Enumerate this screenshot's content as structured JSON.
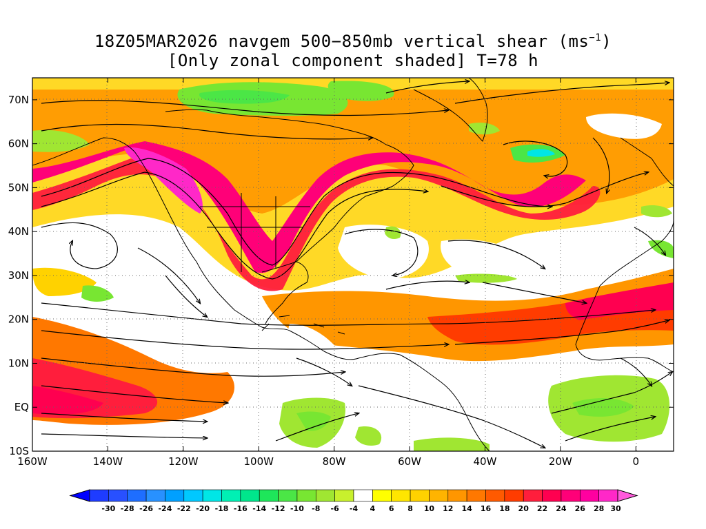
{
  "title": {
    "line1_prefix": "18Z05MAR2026 navgem 500−850mb vertical shear (ms",
    "line1_sup": "−1",
    "line1_suffix": ")",
    "line2": "[Only zonal component shaded] T=78 h"
  },
  "map": {
    "region": "North Atlantic / North America",
    "lon_ticks": [
      {
        "value": -160,
        "label": "160W"
      },
      {
        "value": -140,
        "label": "140W"
      },
      {
        "value": -120,
        "label": "120W"
      },
      {
        "value": -100,
        "label": "100W"
      },
      {
        "value": -80,
        "label": "80W"
      },
      {
        "value": -60,
        "label": "60W"
      },
      {
        "value": -40,
        "label": "40W"
      },
      {
        "value": -20,
        "label": "20W"
      },
      {
        "value": 0,
        "label": "0"
      }
    ],
    "lat_ticks": [
      {
        "value": 70,
        "label": "70N"
      },
      {
        "value": 60,
        "label": "60N"
      },
      {
        "value": 50,
        "label": "50N"
      },
      {
        "value": 40,
        "label": "40N"
      },
      {
        "value": 30,
        "label": "30N"
      },
      {
        "value": 20,
        "label": "20N"
      },
      {
        "value": 10,
        "label": "10N"
      },
      {
        "value": 0,
        "label": "EQ"
      },
      {
        "value": -10,
        "label": "10S"
      }
    ],
    "lon_range": [
      -160,
      10
    ],
    "lat_range": [
      -10,
      75
    ],
    "shading_features": [
      {
        "kind": "jet",
        "level": 26,
        "desc": "subtropical jet core NE Pacific"
      },
      {
        "kind": "jet",
        "level": 26,
        "desc": "jet core over Hudson Bay / N Atlantic"
      },
      {
        "kind": "jet",
        "level": 24,
        "desc": "easterly-shear band over N Africa / E Atlantic"
      },
      {
        "kind": "jet",
        "level": 22,
        "desc": "tropical Pacific shear band"
      }
    ]
  },
  "colorbar": {
    "labels": [
      "-30",
      "-28",
      "-26",
      "-24",
      "-22",
      "-20",
      "-18",
      "-16",
      "-14",
      "-12",
      "-10",
      "-8",
      "-6",
      "-4",
      "4",
      "6",
      "8",
      "10",
      "12",
      "14",
      "16",
      "18",
      "20",
      "22",
      "24",
      "26",
      "28",
      "30"
    ],
    "colors": [
      "#1e3cff",
      "#2850ff",
      "#1e6eff",
      "#2891ff",
      "#00a0ff",
      "#00c8ff",
      "#00e6e6",
      "#00f0b4",
      "#00e68c",
      "#1ee65a",
      "#4be646",
      "#78e632",
      "#a0e632",
      "#c8f02d",
      "#ffffff",
      "#ffff00",
      "#ffe600",
      "#ffd200",
      "#ffb400",
      "#ff9600",
      "#ff7800",
      "#ff5a00",
      "#ff3c00",
      "#ff1e3c",
      "#ff0050",
      "#ff0078",
      "#ff00a0",
      "#ff28c8"
    ],
    "left_arrow_color": "#0000ff",
    "right_arrow_color": "#ff5adc"
  }
}
